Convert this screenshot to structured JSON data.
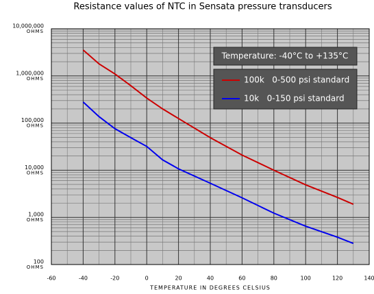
{
  "chart_data": {
    "type": "line",
    "title": "Resistance values of NTC in Sensata pressure transducers",
    "x_label": "TEMPERATURE IN DEGREES CELSIUS",
    "y_unit": "OHMS",
    "annotation": "Temperature: -40°C to +135°C",
    "x": [
      -40,
      -30,
      -20,
      -10,
      0,
      10,
      20,
      40,
      60,
      80,
      100,
      120,
      130
    ],
    "series": [
      {
        "name": "100k   0-500 psi standard",
        "color": "#cc0000",
        "values": [
          3550000,
          1800000,
          1100000,
          620000,
          340000,
          200000,
          125000,
          49000,
          21000,
          10000,
          4900,
          2650,
          1900
        ]
      },
      {
        "name": "10k   0-150 psi standard",
        "color": "#0000ee",
        "values": [
          280000,
          137000,
          76000,
          49000,
          32000,
          16600,
          10700,
          5300,
          2600,
          1230,
          650,
          380,
          280
        ]
      }
    ],
    "xlim": [
      -60,
      140
    ],
    "xticks": [
      -60,
      -40,
      -20,
      0,
      20,
      40,
      60,
      80,
      100,
      120,
      140
    ],
    "ylim": [
      100,
      10000000
    ],
    "log_y": true,
    "yticks": [
      {
        "value": 100,
        "label": "100"
      },
      {
        "value": 1000,
        "label": "1,000"
      },
      {
        "value": 10000,
        "label": "10,000"
      },
      {
        "value": 100000,
        "label": "100,000"
      },
      {
        "value": 1000000,
        "label": "1,000,000"
      },
      {
        "value": 10000000,
        "label": "10,000,000"
      }
    ],
    "grid": true,
    "legend_position": "upper right"
  }
}
